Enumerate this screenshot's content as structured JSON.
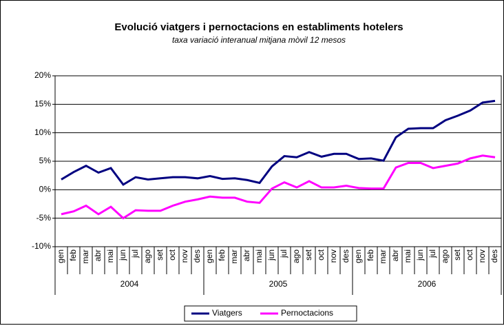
{
  "chart_data": {
    "type": "line",
    "title": "Evolució viatgers i pernoctacions en establiments hotelers",
    "subtitle": "taxa variació interanual mitjana mòvil 12 mesos",
    "categories": [
      "gen",
      "feb",
      "mar",
      "abr",
      "mai",
      "jun",
      "jul",
      "ago",
      "set",
      "oct",
      "nov",
      "des",
      "gen",
      "feb",
      "mar",
      "abr",
      "mai",
      "jun",
      "jul",
      "ago",
      "set",
      "oct",
      "nov",
      "des",
      "gen",
      "feb",
      "mar",
      "abr",
      "mai",
      "jun",
      "jul",
      "ago",
      "set",
      "oct",
      "nov",
      "des"
    ],
    "years": [
      "2004",
      "2005",
      "2006"
    ],
    "series": [
      {
        "name": "Viatgers",
        "color": "#000080",
        "values": [
          1.8,
          3.1,
          4.2,
          3.0,
          3.8,
          0.9,
          2.2,
          1.8,
          2.0,
          2.2,
          2.2,
          2.0,
          2.4,
          1.9,
          2.0,
          1.7,
          1.2,
          4.1,
          5.9,
          5.7,
          6.6,
          5.8,
          6.3,
          6.3,
          5.4,
          5.5,
          5.1,
          9.2,
          10.7,
          10.8,
          10.8,
          12.2,
          13.0,
          13.9,
          15.3,
          15.6
        ]
      },
      {
        "name": "Pernoctacions",
        "color": "#ff00ff",
        "values": [
          -4.3,
          -3.8,
          -2.8,
          -4.3,
          -3.0,
          -5.0,
          -3.6,
          -3.7,
          -3.7,
          -2.8,
          -2.1,
          -1.7,
          -1.2,
          -1.4,
          -1.4,
          -2.1,
          -2.3,
          0.2,
          1.3,
          0.4,
          1.5,
          0.4,
          0.4,
          0.7,
          0.3,
          0.2,
          0.2,
          3.9,
          4.7,
          4.7,
          3.8,
          4.2,
          4.6,
          5.5,
          6.0,
          5.7
        ]
      }
    ],
    "ylim": [
      -10,
      20
    ],
    "yticks": [
      {
        "value": -10,
        "label": "-10%"
      },
      {
        "value": -5,
        "label": "-5%"
      },
      {
        "value": 0,
        "label": "0%"
      },
      {
        "value": 5,
        "label": "5%"
      },
      {
        "value": 10,
        "label": "10%"
      },
      {
        "value": 15,
        "label": "15%"
      },
      {
        "value": 20,
        "label": "20%"
      }
    ],
    "grid": true
  }
}
